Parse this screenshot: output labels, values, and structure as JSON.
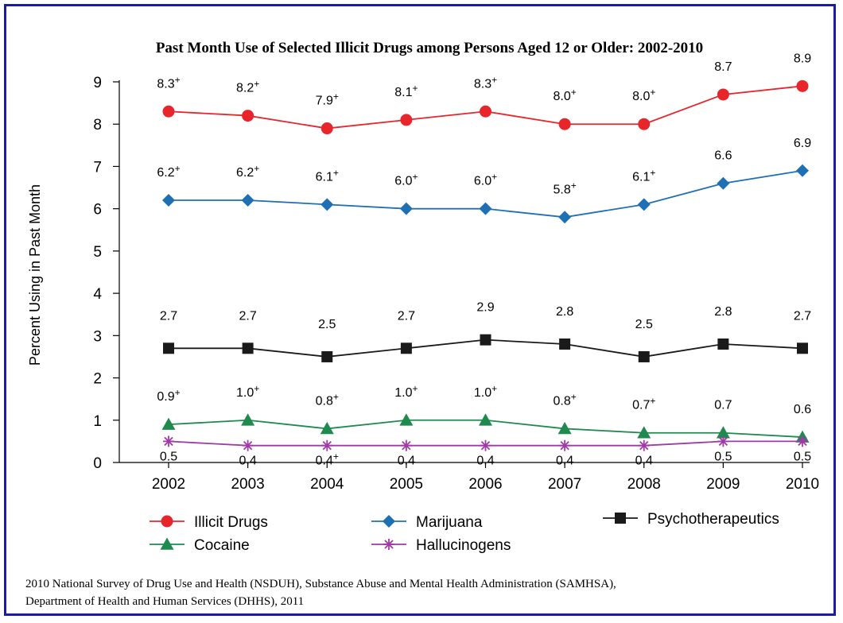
{
  "chart_data": {
    "type": "line",
    "title": "Past Month Use of Selected Illicit Drugs among Persons Aged 12 or Older: 2002-2010",
    "xlabel": "",
    "ylabel": "Percent Using in Past Month",
    "ylim": [
      0,
      9
    ],
    "yticks": [
      "0",
      "1",
      "2",
      "3",
      "4",
      "5",
      "6",
      "7",
      "8",
      "9"
    ],
    "x": [
      "2002",
      "2003",
      "2004",
      "2005",
      "2006",
      "2007",
      "2008",
      "2009",
      "2010"
    ],
    "grid": false,
    "legend_position": "bottom",
    "series": [
      {
        "name": "Illicit Drugs",
        "color": "#e8252b",
        "marker": "circle",
        "values": [
          8.3,
          8.2,
          7.9,
          8.1,
          8.3,
          8.0,
          8.0,
          8.7,
          8.9
        ],
        "labels": [
          "8.3",
          "8.2",
          "7.9",
          "8.1",
          "8.3",
          "8.0",
          "8.0",
          "8.7",
          "8.9"
        ],
        "plus": [
          true,
          true,
          true,
          true,
          true,
          true,
          true,
          false,
          false
        ]
      },
      {
        "name": "Marijuana",
        "color": "#1f6fb5",
        "marker": "diamond",
        "values": [
          6.2,
          6.2,
          6.1,
          6.0,
          6.0,
          5.8,
          6.1,
          6.6,
          6.9
        ],
        "labels": [
          "6.2",
          "6.2",
          "6.1",
          "6.0",
          "6.0",
          "5.8",
          "6.1",
          "6.6",
          "6.9"
        ],
        "plus": [
          true,
          true,
          true,
          true,
          true,
          true,
          true,
          false,
          false
        ]
      },
      {
        "name": "Psychotherapeutics",
        "color": "#1a1a1a",
        "marker": "square",
        "values": [
          2.7,
          2.7,
          2.5,
          2.7,
          2.9,
          2.8,
          2.5,
          2.8,
          2.7
        ],
        "labels": [
          "2.7",
          "2.7",
          "2.5",
          "2.7",
          "2.9",
          "2.8",
          "2.5",
          "2.8",
          "2.7"
        ],
        "plus": [
          false,
          false,
          false,
          false,
          false,
          false,
          false,
          false,
          false
        ]
      },
      {
        "name": "Cocaine",
        "color": "#1e8a4e",
        "marker": "triangle",
        "values": [
          0.9,
          1.0,
          0.8,
          1.0,
          1.0,
          0.8,
          0.7,
          0.7,
          0.6
        ],
        "labels": [
          "0.9",
          "1.0",
          "0.8",
          "1.0",
          "1.0",
          "0.8",
          "0.7",
          "0.7",
          "0.6"
        ],
        "plus": [
          true,
          true,
          true,
          true,
          true,
          true,
          true,
          false,
          false
        ]
      },
      {
        "name": "Hallucinogens",
        "color": "#a03aa8",
        "marker": "star",
        "values": [
          0.5,
          0.4,
          0.4,
          0.4,
          0.4,
          0.4,
          0.4,
          0.5,
          0.5
        ],
        "labels": [
          "0.5",
          "0.4",
          "0.4",
          "0.4",
          "0.4",
          "0.4",
          "0.4",
          "0.5",
          "0.5"
        ],
        "plus": [
          false,
          false,
          true,
          false,
          false,
          false,
          false,
          false,
          false
        ]
      }
    ],
    "plus_symbol": "+"
  },
  "source": {
    "line1": "2010 National Survey of Drug Use and Health (NSDUH), Substance Abuse and Mental Health Administration (SAMHSA),",
    "line2": "Department of Health and Human Services (DHHS), 2011"
  }
}
